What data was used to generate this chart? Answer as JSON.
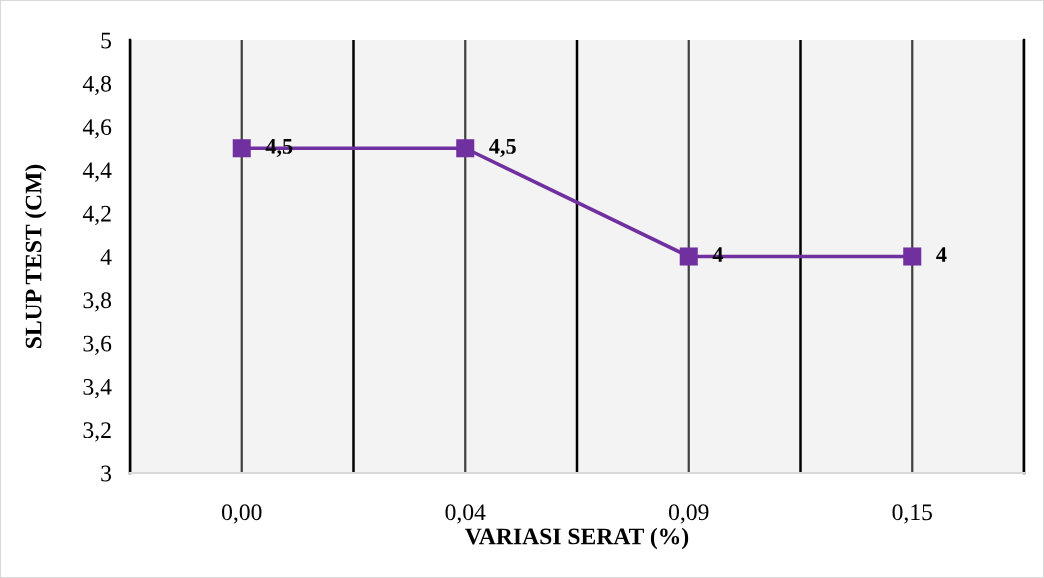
{
  "chart_data": {
    "type": "line",
    "xlabel": "VARIASI SERAT (%)",
    "ylabel": "SLUP TEST (CM)",
    "categories": [
      "0,00",
      "0,04",
      "0,09",
      "0,15"
    ],
    "series": [
      {
        "values": [
          4.5,
          4.5,
          4,
          4
        ],
        "color": "#7030a0",
        "value_labels": [
          "4,5",
          "4,5",
          "4",
          "4"
        ]
      }
    ],
    "ylim": [
      3,
      5
    ],
    "yticks": [
      3,
      {
        "value": 3.2,
        "label": "3,2"
      },
      {
        "value": 3.4,
        "label": "3,4"
      },
      {
        "value": 3.6,
        "label": "3,6"
      },
      {
        "value": 3.8,
        "label": "3,8"
      },
      4,
      {
        "value": 4.2,
        "label": "4,2"
      },
      {
        "value": 4.4,
        "label": "4,4"
      },
      {
        "value": 4.6,
        "label": "4,6"
      },
      {
        "value": 4.8,
        "label": "4,8"
      },
      5
    ],
    "grid": "x",
    "marker": "square",
    "line_style": "solid"
  }
}
